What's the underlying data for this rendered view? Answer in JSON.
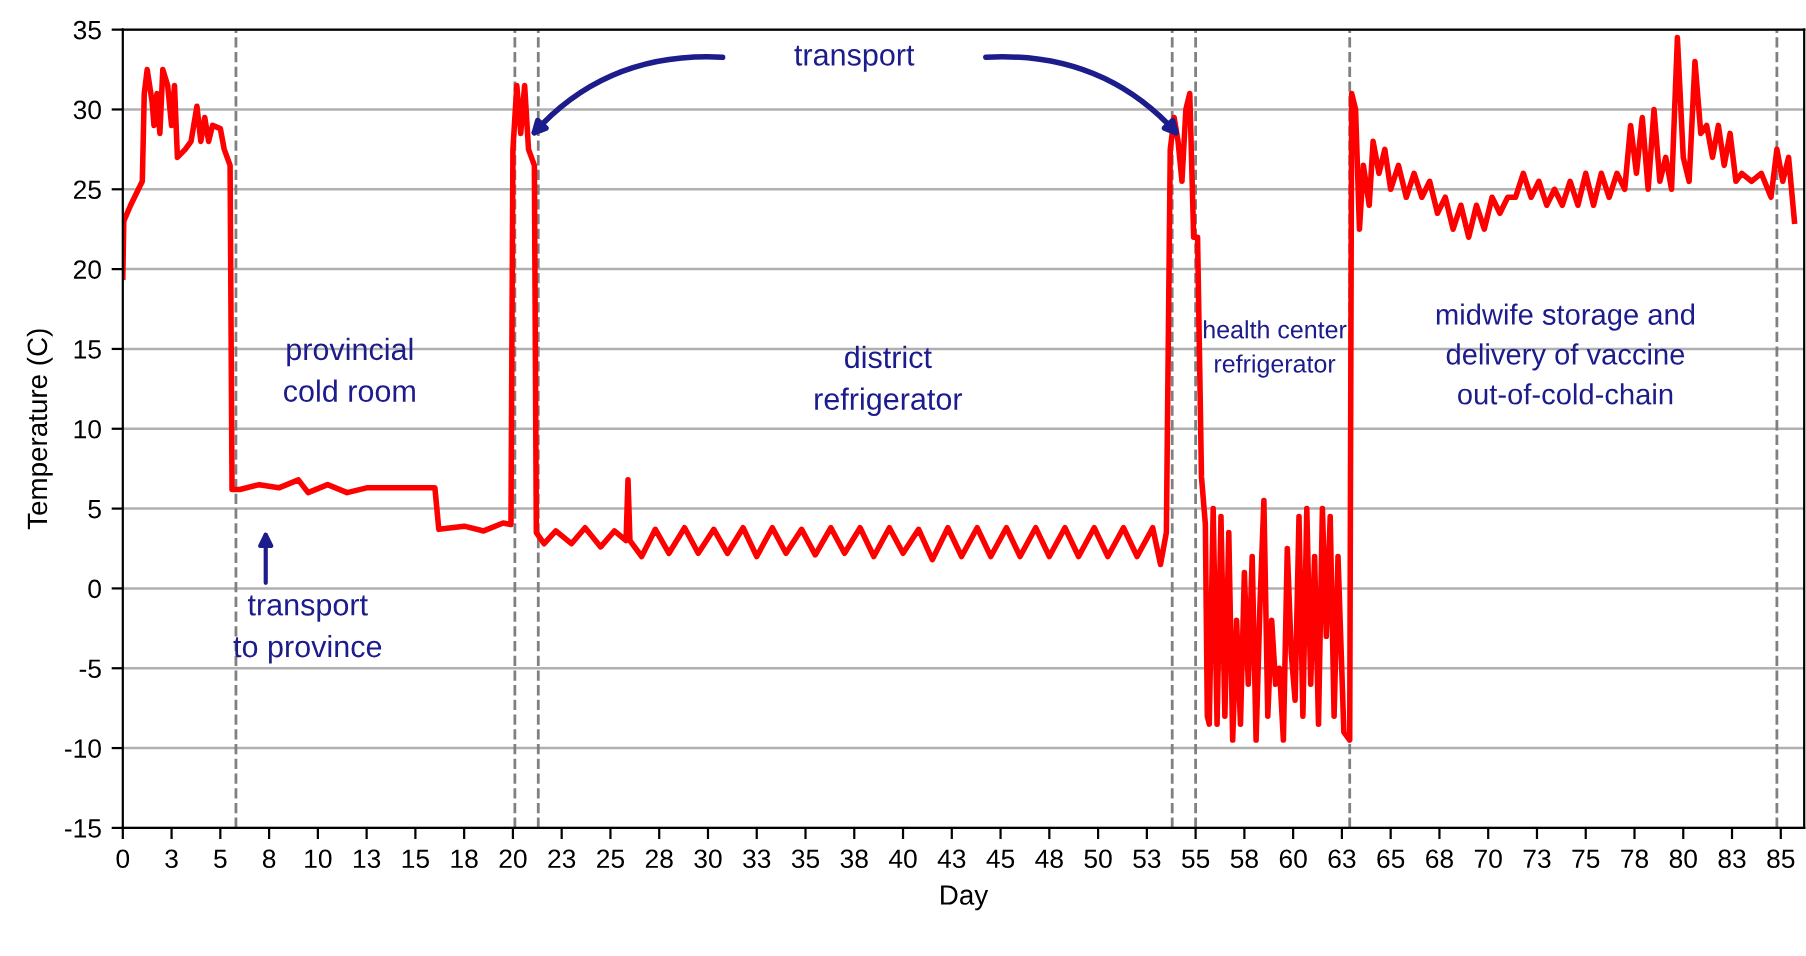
{
  "chart_data": {
    "type": "line",
    "xlabel": "Day",
    "ylabel": "Temperature (C)",
    "xlim": [
      0,
      86.2
    ],
    "ylim": [
      -15,
      35
    ],
    "xticks": [
      0,
      {
        "value": 2.5,
        "label": "3"
      },
      5,
      {
        "value": 7.5,
        "label": "8"
      },
      10,
      {
        "value": 12.5,
        "label": "13"
      },
      15,
      {
        "value": 17.5,
        "label": "18"
      },
      20,
      {
        "value": 22.5,
        "label": "23"
      },
      25,
      {
        "value": 27.5,
        "label": "28"
      },
      30,
      {
        "value": 32.5,
        "label": "33"
      },
      35,
      {
        "value": 37.5,
        "label": "38"
      },
      40,
      {
        "value": 42.5,
        "label": "43"
      },
      45,
      {
        "value": 47.5,
        "label": "48"
      },
      50,
      {
        "value": 52.5,
        "label": "53"
      },
      55,
      {
        "value": 57.5,
        "label": "58"
      },
      60,
      {
        "value": 62.5,
        "label": "63"
      },
      65,
      {
        "value": 67.5,
        "label": "68"
      },
      70,
      {
        "value": 72.5,
        "label": "73"
      },
      75,
      {
        "value": 77.5,
        "label": "78"
      },
      80,
      {
        "value": 82.5,
        "label": "83"
      },
      85
    ],
    "yticks": [
      -15,
      -10,
      -5,
      0,
      5,
      10,
      15,
      20,
      25,
      30,
      35
    ],
    "grid": "y",
    "marker": "none",
    "line_style": "solid",
    "series": [
      {
        "color": "#ff0000",
        "x": [
          0,
          0.05,
          0.4,
          0.8,
          1.0,
          1.1,
          1.25,
          1.5,
          1.6,
          1.75,
          1.9,
          2.05,
          2.3,
          2.5,
          2.65,
          2.8,
          3.2,
          3.5,
          3.8,
          4.0,
          4.2,
          4.4,
          4.6,
          5.0,
          5.2,
          5.5,
          5.6,
          6.0,
          7.0,
          8.0,
          9.0,
          9.5,
          10.5,
          11.5,
          12.5,
          14,
          16.0,
          16.2,
          17.5,
          18.5,
          19.5,
          19.9,
          20.0,
          20.2,
          20.4,
          20.6,
          20.8,
          21.1,
          21.2,
          21.6,
          22.2,
          23,
          23.7,
          24.5,
          25.2,
          25.8,
          25.9,
          26.0,
          26.6,
          27.3,
          28,
          28.8,
          29.5,
          30.3,
          31,
          31.8,
          32.5,
          33.3,
          34,
          34.8,
          35.5,
          36.3,
          37,
          37.8,
          38.5,
          39.3,
          40,
          40.8,
          41.5,
          42.3,
          43,
          43.8,
          44.5,
          45.3,
          46,
          46.8,
          47.5,
          48.3,
          49,
          49.8,
          50.5,
          51.3,
          52,
          52.8,
          53.2,
          53.5,
          53.7,
          53.9,
          54.1,
          54.3,
          54.5,
          54.7,
          54.9,
          55.1,
          55.3,
          55.5,
          55.6,
          55.7,
          55.9,
          56.1,
          56.3,
          56.5,
          56.7,
          56.9,
          57.1,
          57.3,
          57.5,
          57.7,
          57.9,
          58.1,
          58.3,
          58.5,
          58.7,
          58.9,
          59.1,
          59.3,
          59.5,
          59.7,
          59.9,
          60.1,
          60.3,
          60.5,
          60.7,
          60.9,
          61.1,
          61.3,
          61.5,
          61.7,
          61.9,
          62.1,
          62.3,
          62.6,
          62.9,
          63.0,
          63.2,
          63.4,
          63.6,
          63.9,
          64.1,
          64.4,
          64.7,
          65,
          65.4,
          65.8,
          66.2,
          66.6,
          67,
          67.4,
          67.8,
          68.2,
          68.6,
          69,
          69.4,
          69.8,
          70.2,
          70.6,
          71,
          71.4,
          71.8,
          72.2,
          72.6,
          73,
          73.4,
          73.8,
          74.2,
          74.6,
          75,
          75.4,
          75.8,
          76.2,
          76.6,
          77,
          77.3,
          77.6,
          77.9,
          78.2,
          78.5,
          78.8,
          79.1,
          79.4,
          79.7,
          80,
          80.3,
          80.6,
          80.9,
          81.2,
          81.5,
          81.8,
          82.1,
          82.4,
          82.7,
          83,
          83.5,
          84,
          84.5,
          84.8,
          85.1,
          85.4,
          85.7
        ],
        "values": [
          19.5,
          23,
          24,
          25,
          25.5,
          31,
          32.5,
          30.5,
          29,
          31,
          28.5,
          32.5,
          31.5,
          29,
          31.5,
          27,
          27.5,
          28,
          30.2,
          28,
          29.5,
          28,
          29,
          28.8,
          27.5,
          26.5,
          6.2,
          6.2,
          6.5,
          6.3,
          6.8,
          6.0,
          6.5,
          6.0,
          6.3,
          6.3,
          6.3,
          3.7,
          3.9,
          3.6,
          4.1,
          4.0,
          27.5,
          31.5,
          28.5,
          31.5,
          27.5,
          26.5,
          3.5,
          2.8,
          3.6,
          2.8,
          3.8,
          2.6,
          3.6,
          3.0,
          6.8,
          3.0,
          2.0,
          3.7,
          2.2,
          3.8,
          2.2,
          3.7,
          2.2,
          3.8,
          2.0,
          3.8,
          2.2,
          3.7,
          2.1,
          3.8,
          2.2,
          3.8,
          2.0,
          3.8,
          2.2,
          3.7,
          1.8,
          3.8,
          2.0,
          3.8,
          2.0,
          3.8,
          2.0,
          3.8,
          2.0,
          3.8,
          2.0,
          3.8,
          2.0,
          3.8,
          2.0,
          3.8,
          1.5,
          3.5,
          27.5,
          29.5,
          28,
          25.5,
          30,
          31,
          22,
          22,
          7,
          4,
          -8,
          -8.5,
          5,
          -8.5,
          4.5,
          -8,
          3.5,
          -9.5,
          -2,
          -8.5,
          1,
          -6,
          2,
          -9.5,
          -1,
          5.5,
          -8,
          -2,
          -6,
          -5,
          -9.5,
          2.5,
          -4,
          -7,
          4.5,
          -8,
          5,
          -6,
          2,
          -8.5,
          5,
          -3,
          4.5,
          -8,
          2,
          -9,
          -9.5,
          31,
          30,
          22.5,
          26.5,
          24,
          28,
          26,
          27.5,
          25,
          26.5,
          24.5,
          26,
          24.5,
          25.5,
          23.5,
          24.5,
          22.5,
          24,
          22,
          24,
          22.5,
          24.5,
          23.5,
          24.5,
          24.5,
          26,
          24.5,
          25.5,
          24,
          25,
          24,
          25.5,
          24,
          26,
          24,
          26,
          24.5,
          26,
          25,
          29,
          26,
          29.5,
          25,
          30,
          25.5,
          27,
          25,
          34.5,
          27,
          25.5,
          33,
          28.5,
          29,
          27,
          29,
          26.5,
          28.5,
          25.5,
          26,
          25.5,
          26,
          24.5,
          27.5,
          25.5,
          27,
          23
        ]
      }
    ],
    "ref_lines": [
      {
        "axis": "x",
        "value": 5.8,
        "color": "#808080",
        "line_style": "dashed"
      },
      {
        "axis": "x",
        "value": 20.1,
        "color": "#808080",
        "line_style": "dashed"
      },
      {
        "axis": "x",
        "value": 21.3,
        "color": "#808080",
        "line_style": "dashed"
      },
      {
        "axis": "x",
        "value": 53.8,
        "color": "#808080",
        "line_style": "dashed"
      },
      {
        "axis": "x",
        "value": 55.0,
        "color": "#808080",
        "line_style": "dashed"
      },
      {
        "axis": "x",
        "value": 62.9,
        "color": "#808080",
        "line_style": "dashed"
      },
      {
        "axis": "x",
        "value": 84.8,
        "color": "#808080",
        "line_style": "dashed"
      }
    ],
    "annotations": [
      "transport\nto province",
      "provincial\ncold room",
      "district\nrefrigerator",
      "health center\nrefrigerator",
      "midwife storage and\ndelivery of vaccine\nout-of-cold-chain",
      "transport"
    ]
  }
}
